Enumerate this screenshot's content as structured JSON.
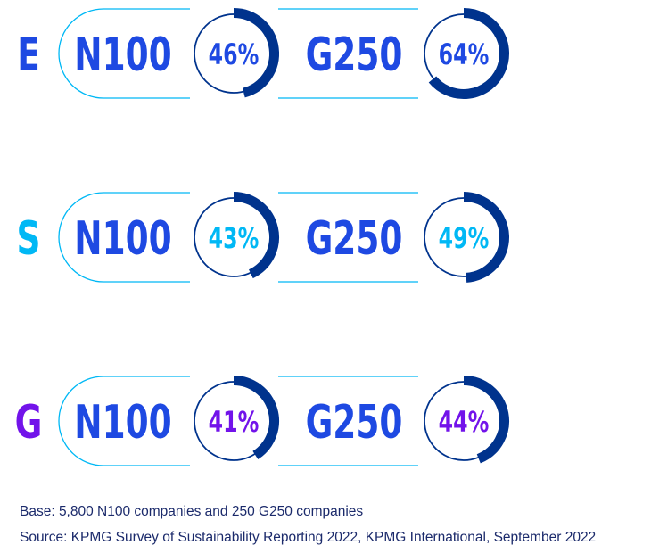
{
  "chart_data": {
    "type": "donut",
    "title": "",
    "groups": [
      {
        "letter": "E",
        "color": "#1e49e2",
        "pct_color": "#1e49e2",
        "items": [
          {
            "name": "N100",
            "value": 46,
            "label": "46%"
          },
          {
            "name": "G250",
            "value": 64,
            "label": "64%"
          }
        ]
      },
      {
        "letter": "S",
        "color": "#00b8f5",
        "pct_color": "#00b8f5",
        "items": [
          {
            "name": "N100",
            "value": 43,
            "label": "43%"
          },
          {
            "name": "G250",
            "value": 49,
            "label": "49%"
          }
        ]
      },
      {
        "letter": "G",
        "color": "#7213ea",
        "pct_color": "#7213ea",
        "items": [
          {
            "name": "N100",
            "value": 41,
            "label": "41%"
          },
          {
            "name": "G250",
            "value": 44,
            "label": "44%"
          }
        ]
      }
    ],
    "ring_color": "#00338d",
    "name_color": "#1e49e2",
    "track_color": "#00338d",
    "pill_outline_color": "#00b8f5"
  },
  "notes": {
    "base": "Base: 5,800 N100 companies and 250 G250 companies",
    "source": "Source: KPMG Survey of Sustainability Reporting 2022, KPMG International, September 2022"
  }
}
